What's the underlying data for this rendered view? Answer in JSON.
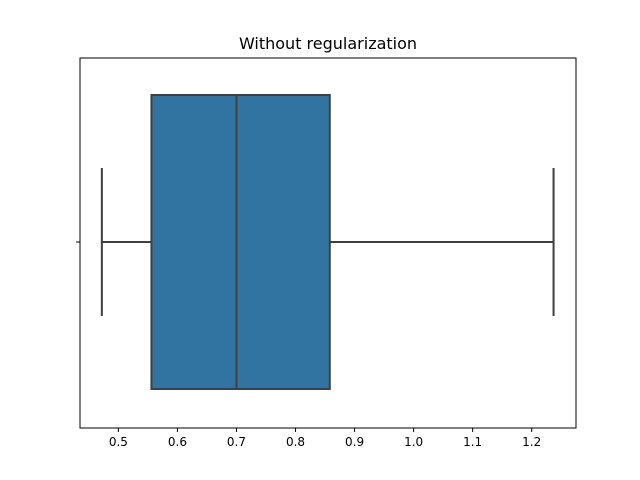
{
  "chart_data": {
    "type": "box",
    "title": "Without regularization",
    "xlabel": "",
    "ylabel": "",
    "orientation": "horizontal",
    "xlim": [
      0.435,
      1.275
    ],
    "xticks": [
      0.5,
      0.6,
      0.7,
      0.8,
      0.9,
      1.0,
      1.1,
      1.2
    ],
    "xtick_labels": [
      "0.5",
      "0.6",
      "0.7",
      "0.8",
      "0.9",
      "1.0",
      "1.1",
      "1.2"
    ],
    "box": {
      "whisker_low": 0.472,
      "q1": 0.556,
      "median": 0.7,
      "q3": 0.858,
      "whisker_high": 1.237
    },
    "grid": false,
    "colors": {
      "box_fill": "#3274a1",
      "lines": "#3f3f3f"
    }
  }
}
